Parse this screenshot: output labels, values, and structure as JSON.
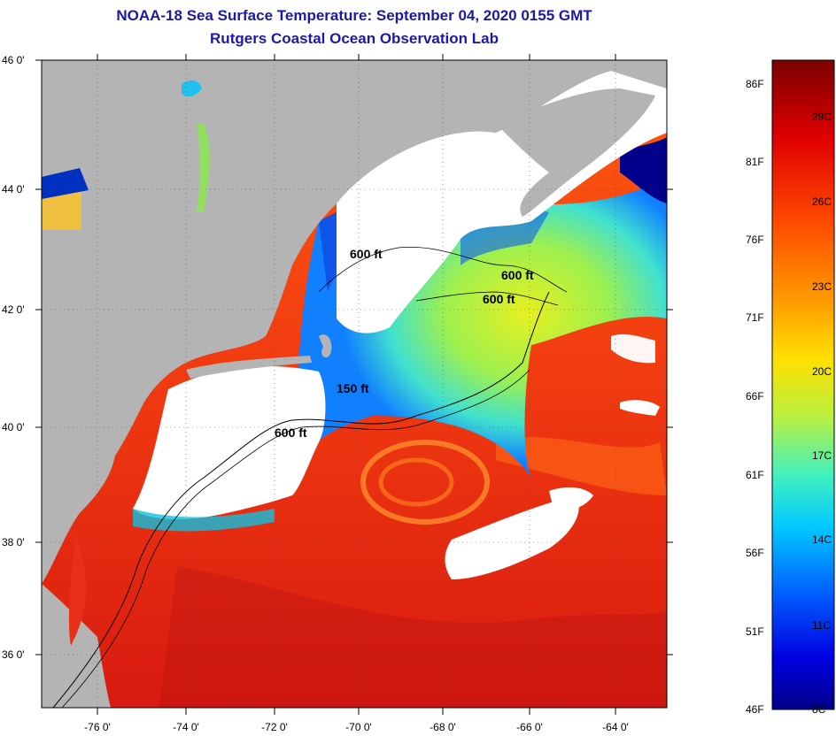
{
  "header": {
    "title": "NOAA-18 Sea Surface Temperature:  September 04, 2020 0155 GMT",
    "subtitle": "Rutgers Coastal Ocean Observation Lab"
  },
  "axes": {
    "lat_labels": [
      "46 0'",
      "44 0'",
      "42 0'",
      "40 0'",
      "38 0'",
      "36 0'"
    ],
    "lon_labels": [
      "-76 0'",
      "-74 0'",
      "-72 0'",
      "-70 0'",
      "-68 0'",
      "-66 0'",
      "-64 0'"
    ]
  },
  "contours": [
    "600 ft",
    "600 ft",
    "600 ft",
    "150 ft",
    "600 ft"
  ],
  "colorbar": {
    "fahrenheit": [
      "86F",
      "81F",
      "76F",
      "71F",
      "66F",
      "61F",
      "56F",
      "51F",
      "46F"
    ],
    "celsius": [
      "29C",
      "26C",
      "23C",
      "20C",
      "17C",
      "14C",
      "11C",
      "8C"
    ]
  },
  "colors": {
    "title": "#1a1aa6",
    "land": "#b4b4b4",
    "cloud": "#ffffff",
    "warm": "#e83018",
    "cold": "#00008a"
  }
}
